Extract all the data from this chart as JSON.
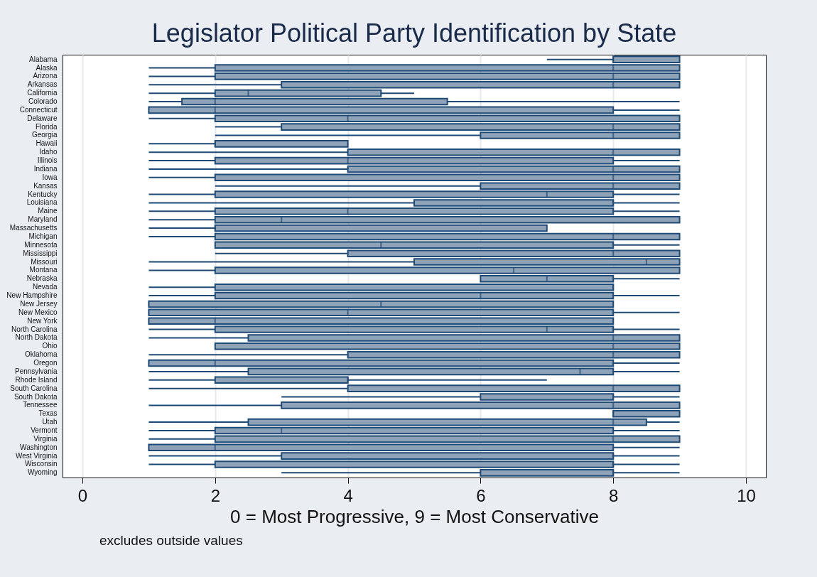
{
  "chart_data": {
    "type": "box",
    "orientation": "horizontal",
    "title": "Legislator Political Party Identification by State",
    "xlabel": "0 = Most Progressive, 9 = Most Conservative",
    "annotations": [
      "excludes outside values"
    ],
    "color": "#8ea2b8",
    "grid": "x",
    "xlim": [
      -0.3,
      10.3
    ],
    "xticks": [
      0,
      2,
      4,
      6,
      8,
      10
    ],
    "categories": [
      "Alabama",
      "Alaska",
      "Arizona",
      "Arkansas",
      "California",
      "Colorado",
      "Connecticut",
      "Delaware",
      "Florida",
      "Georgia",
      "Hawaii",
      "Idaho",
      "Illinois",
      "Indiana",
      "Iowa",
      "Kansas",
      "Kentucky",
      "Louisiana",
      "Maine",
      "Maryland",
      "Massachusetts",
      "Michigan",
      "Minnesota",
      "Mississippi",
      "Missouri",
      "Montana",
      "Nebraska",
      "Nevada",
      "New Hampshire",
      "New Jersey",
      "New Mexico",
      "New York",
      "North Carolina",
      "North Dakota",
      "Ohio",
      "Oklahoma",
      "Oregon",
      "Pennsylvania",
      "Rhode Island",
      "South Carolina",
      "South Dakota",
      "Tennessee",
      "Texas",
      "Utah",
      "Vermont",
      "Virginia",
      "Washington",
      "West Virginia",
      "Wisconsin",
      "Wyoming"
    ],
    "boxes": [
      {
        "low": 7,
        "q1": 8,
        "median": 8,
        "q3": 9,
        "high": 9
      },
      {
        "low": 1,
        "q1": 2,
        "median": 8,
        "q3": 9,
        "high": 9
      },
      {
        "low": 1,
        "q1": 2,
        "median": 8,
        "q3": 9,
        "high": 9
      },
      {
        "low": 1,
        "q1": 3,
        "median": 8,
        "q3": 9,
        "high": 9
      },
      {
        "low": 1,
        "q1": 2,
        "median": 2.5,
        "q3": 4.5,
        "high": 5
      },
      {
        "low": 1,
        "q1": 1.5,
        "median": 2,
        "q3": 5.5,
        "high": 9
      },
      {
        "low": 1,
        "q1": 1,
        "median": 2,
        "q3": 8,
        "high": 9
      },
      {
        "low": 1,
        "q1": 2,
        "median": 4,
        "q3": 9,
        "high": 9
      },
      {
        "low": 2,
        "q1": 3,
        "median": 8,
        "q3": 9,
        "high": 9
      },
      {
        "low": 2,
        "q1": 6,
        "median": 8,
        "q3": 9,
        "high": 9
      },
      {
        "low": 1,
        "q1": 2,
        "median": 2,
        "q3": 4,
        "high": 4
      },
      {
        "low": 1,
        "q1": 4,
        "median": 8,
        "q3": 9,
        "high": 9
      },
      {
        "low": 1,
        "q1": 2,
        "median": 4,
        "q3": 8,
        "high": 9
      },
      {
        "low": 1,
        "q1": 4,
        "median": 8,
        "q3": 9,
        "high": 9
      },
      {
        "low": 1,
        "q1": 2,
        "median": 8,
        "q3": 9,
        "high": 9
      },
      {
        "low": 2,
        "q1": 6,
        "median": 8,
        "q3": 9,
        "high": 9
      },
      {
        "low": 1,
        "q1": 2,
        "median": 7,
        "q3": 8,
        "high": 9
      },
      {
        "low": 1,
        "q1": 5,
        "median": 8,
        "q3": 8,
        "high": 9
      },
      {
        "low": 1,
        "q1": 2,
        "median": 4,
        "q3": 8,
        "high": 9
      },
      {
        "low": 1,
        "q1": 2,
        "median": 3,
        "q3": 9,
        "high": 9
      },
      {
        "low": 1,
        "q1": 2,
        "median": 2,
        "q3": 7,
        "high": 7
      },
      {
        "low": 1,
        "q1": 2,
        "median": 8,
        "q3": 9,
        "high": 9
      },
      {
        "low": 2,
        "q1": 2,
        "median": 4.5,
        "q3": 8,
        "high": 9
      },
      {
        "low": 2,
        "q1": 4,
        "median": 8,
        "q3": 9,
        "high": 9
      },
      {
        "low": 1,
        "q1": 5,
        "median": 8.5,
        "q3": 9,
        "high": 9
      },
      {
        "low": 1,
        "q1": 2,
        "median": 6.5,
        "q3": 9,
        "high": 9
      },
      {
        "low": 6,
        "q1": 6,
        "median": 7,
        "q3": 8,
        "high": 9
      },
      {
        "low": 1,
        "q1": 2,
        "median": 8,
        "q3": 8,
        "high": 8
      },
      {
        "low": 1,
        "q1": 2,
        "median": 6,
        "q3": 8,
        "high": 9
      },
      {
        "low": 1,
        "q1": 1,
        "median": 4.5,
        "q3": 8,
        "high": 8
      },
      {
        "low": 1,
        "q1": 1,
        "median": 4,
        "q3": 8,
        "high": 9
      },
      {
        "low": 1,
        "q1": 1,
        "median": 2,
        "q3": 8,
        "high": 8
      },
      {
        "low": 1,
        "q1": 2,
        "median": 7,
        "q3": 8,
        "high": 9
      },
      {
        "low": 1,
        "q1": 2.5,
        "median": 8,
        "q3": 9,
        "high": 9
      },
      {
        "low": 2,
        "q1": 2,
        "median": 8,
        "q3": 9,
        "high": 9
      },
      {
        "low": 1,
        "q1": 4,
        "median": 8,
        "q3": 9,
        "high": 9
      },
      {
        "low": 1,
        "q1": 1,
        "median": 2,
        "q3": 8,
        "high": 9
      },
      {
        "low": 1,
        "q1": 2.5,
        "median": 7.5,
        "q3": 8,
        "high": 9
      },
      {
        "low": 1,
        "q1": 2,
        "median": 4,
        "q3": 4,
        "high": 7
      },
      {
        "low": 1,
        "q1": 4,
        "median": 8,
        "q3": 9,
        "high": 9
      },
      {
        "low": 3,
        "q1": 6,
        "median": 8,
        "q3": 8,
        "high": 9
      },
      {
        "low": 1,
        "q1": 3,
        "median": 8,
        "q3": 9,
        "high": 9
      },
      {
        "low": 8,
        "q1": 8,
        "median": 8,
        "q3": 9,
        "high": 9
      },
      {
        "low": 1,
        "q1": 2.5,
        "median": 8,
        "q3": 8.5,
        "high": 9
      },
      {
        "low": 1,
        "q1": 2,
        "median": 3,
        "q3": 8,
        "high": 9
      },
      {
        "low": 1,
        "q1": 2,
        "median": 8,
        "q3": 9,
        "high": 9
      },
      {
        "low": 1,
        "q1": 1,
        "median": 2,
        "q3": 8,
        "high": 9
      },
      {
        "low": 1,
        "q1": 3,
        "median": 8,
        "q3": 8,
        "high": 9
      },
      {
        "low": 1,
        "q1": 2,
        "median": 8,
        "q3": 8,
        "high": 9
      },
      {
        "low": 3,
        "q1": 6,
        "median": 8,
        "q3": 8,
        "high": 9
      }
    ]
  }
}
